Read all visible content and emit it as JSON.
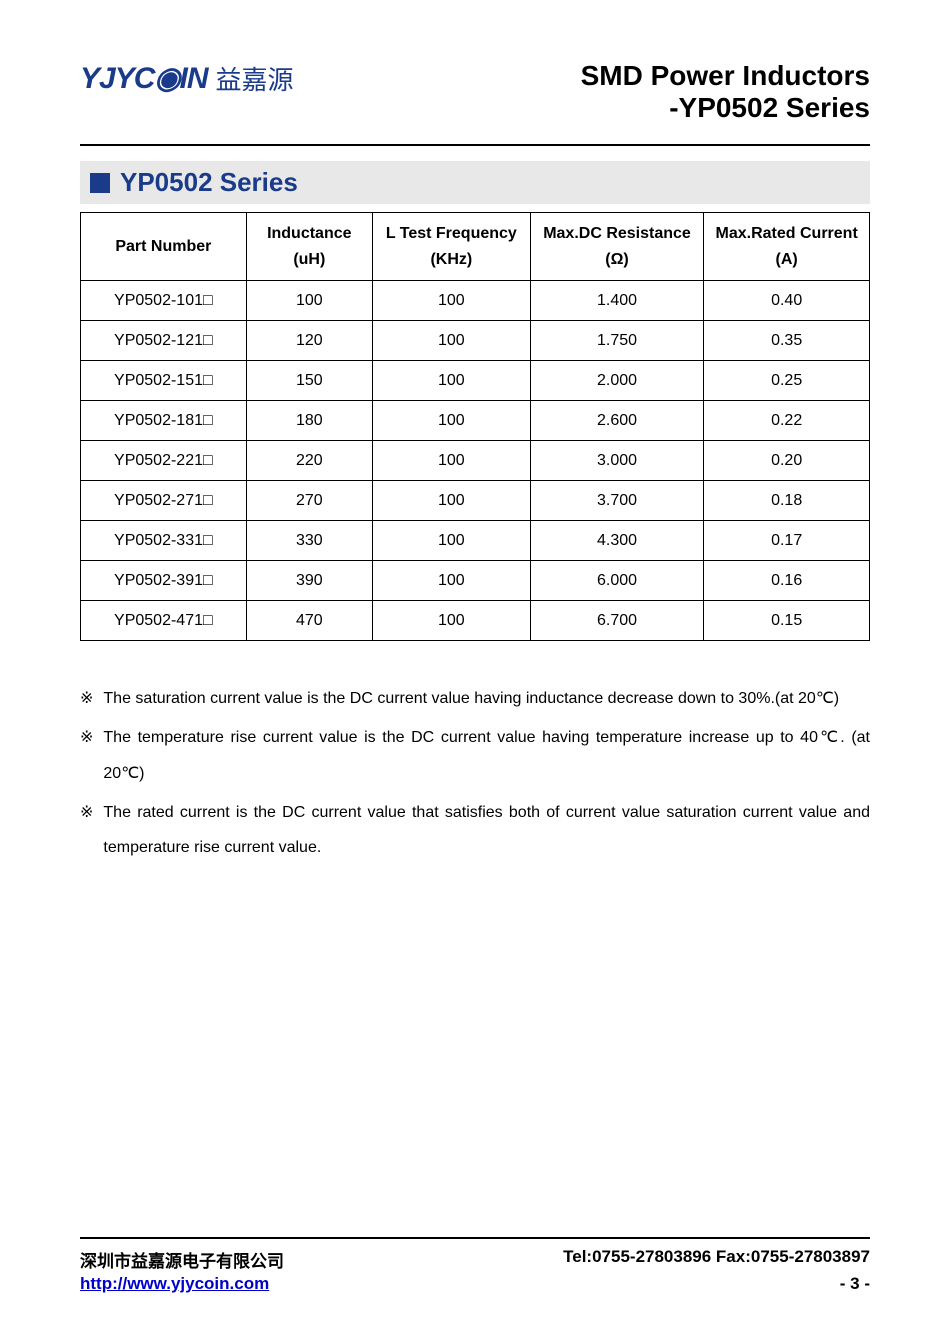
{
  "header": {
    "logo_text": "YJYC◉IN",
    "logo_cn": "益嘉源",
    "title_line1": "SMD Power Inductors",
    "title_line2": "-YP0502 Series"
  },
  "section": {
    "title": "YP0502 Series"
  },
  "table": {
    "columns": [
      {
        "label": "Part Number",
        "unit": ""
      },
      {
        "label": "Inductance",
        "unit": "(uH)"
      },
      {
        "label": "L Test Frequency",
        "unit": "(KHz)"
      },
      {
        "label": "Max.DC Resistance",
        "unit": "(Ω)"
      },
      {
        "label": "Max.Rated Current",
        "unit": "(A)"
      }
    ],
    "rows": [
      [
        "YP0502-101□",
        "100",
        "100",
        "1.400",
        "0.40"
      ],
      [
        "YP0502-121□",
        "120",
        "100",
        "1.750",
        "0.35"
      ],
      [
        "YP0502-151□",
        "150",
        "100",
        "2.000",
        "0.25"
      ],
      [
        "YP0502-181□",
        "180",
        "100",
        "2.600",
        "0.22"
      ],
      [
        "YP0502-221□",
        "220",
        "100",
        "3.000",
        "0.20"
      ],
      [
        "YP0502-271□",
        "270",
        "100",
        "3.700",
        "0.18"
      ],
      [
        "YP0502-331□",
        "330",
        "100",
        "4.300",
        "0.17"
      ],
      [
        "YP0502-391□",
        "390",
        "100",
        "6.000",
        "0.16"
      ],
      [
        "YP0502-471□",
        "470",
        "100",
        "6.700",
        "0.15"
      ]
    ]
  },
  "notes": {
    "marker": "※",
    "items": [
      "The saturation current value is the DC current value having inductance decrease down to 30%.(at 20℃)",
      "The temperature rise current value is the DC current value having temperature increase up to 40℃. (at 20℃)",
      "The rated current is the DC current value that satisfies both of current value saturation current value and temperature rise current value."
    ]
  },
  "footer": {
    "company": "深圳市益嘉源电子有限公司",
    "contact": "Tel:0755-27803896   Fax:0755-27803897",
    "url": "http://www.yjycoin.com",
    "page": "- 3 -"
  },
  "style": {
    "accent_color": "#1a3a8a",
    "section_bg": "#e8e8e8",
    "border_color": "#000000",
    "link_color": "#0000cc",
    "background": "#ffffff"
  }
}
